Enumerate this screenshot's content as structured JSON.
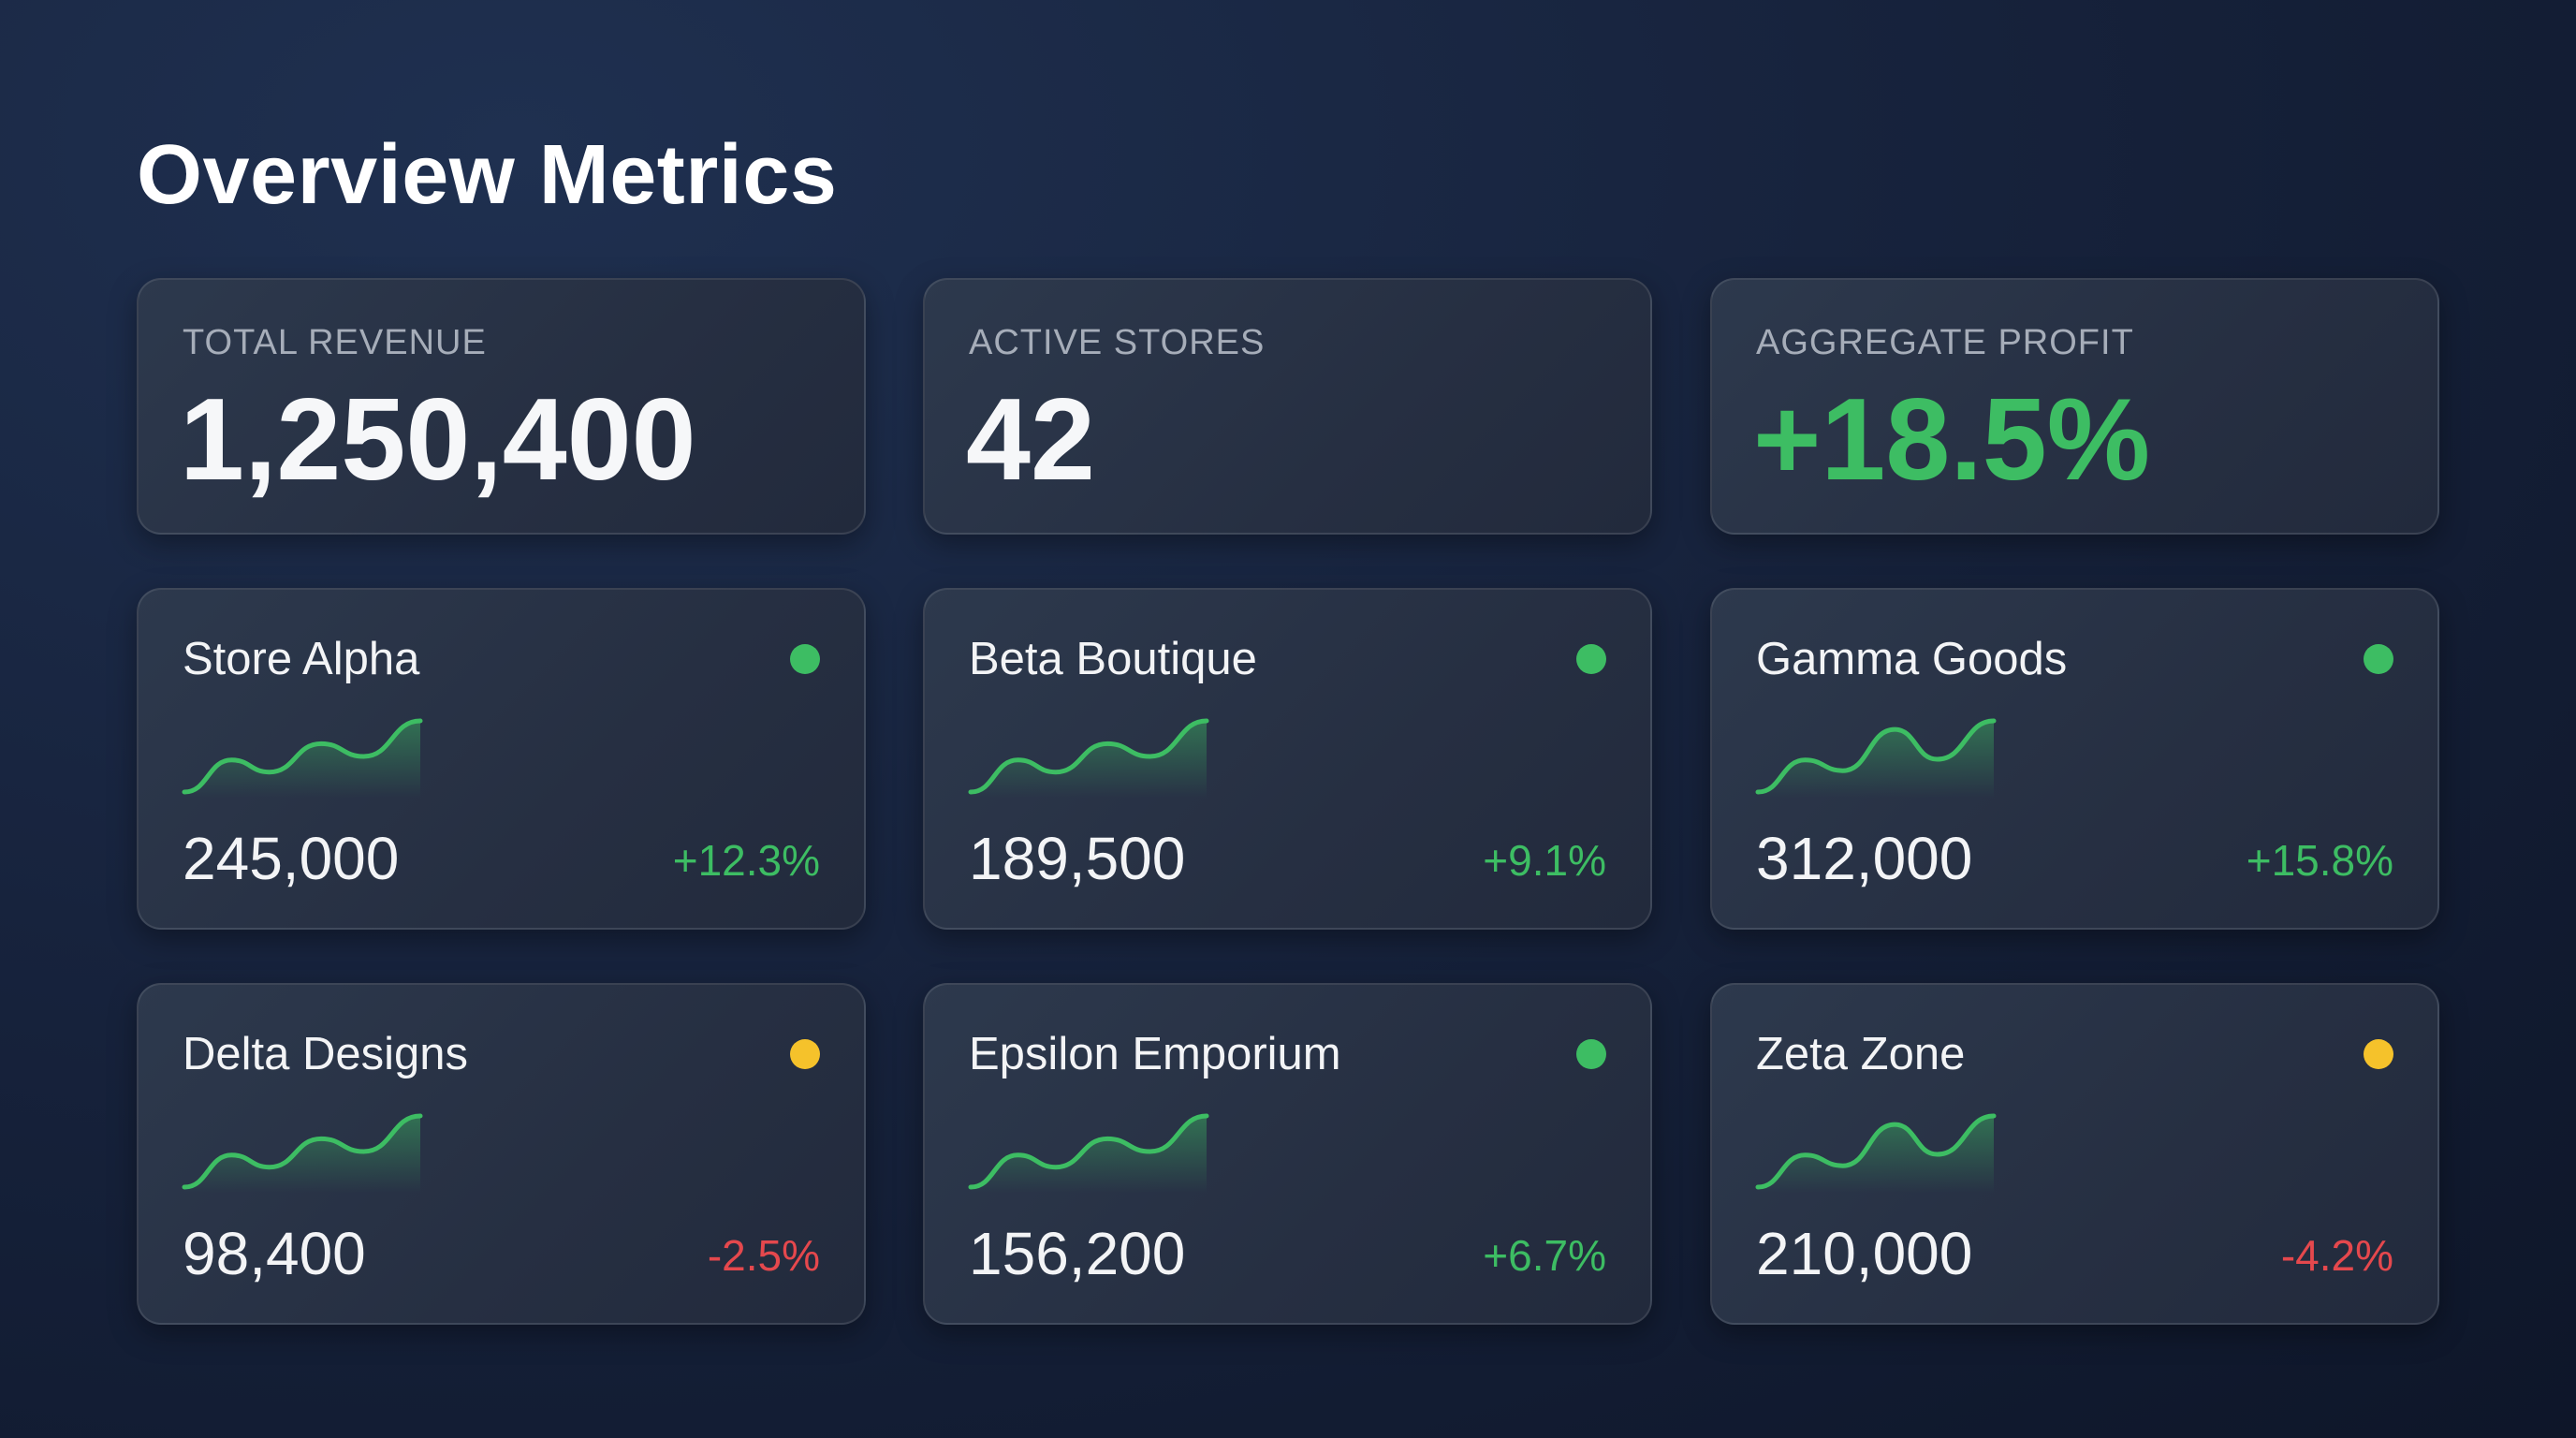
{
  "header": {
    "title": "Overview Metrics"
  },
  "colors": {
    "positive": "#3dbd63",
    "negative": "#e5484d",
    "status_green": "#3dbd63",
    "status_yellow": "#f5c22b"
  },
  "summary": [
    {
      "label": "TOTAL REVENUE",
      "value": "1,250,400",
      "tone": "neutral"
    },
    {
      "label": "ACTIVE STORES",
      "value": "42",
      "tone": "neutral"
    },
    {
      "label": "AGGREGATE PROFIT",
      "value": "+18.5%",
      "tone": "positive"
    }
  ],
  "stores": [
    {
      "name": "Store Alpha",
      "status": "green",
      "value": "245,000",
      "change": "+12.3%",
      "trend": [
        0,
        0.45,
        0.28,
        0.68,
        0.5,
        1
      ]
    },
    {
      "name": "Beta Boutique",
      "status": "green",
      "value": "189,500",
      "change": "+9.1%",
      "trend": [
        0,
        0.45,
        0.28,
        0.68,
        0.5,
        1
      ]
    },
    {
      "name": "Gamma Goods",
      "status": "green",
      "value": "312,000",
      "change": "+15.8%",
      "trend": [
        0,
        0.45,
        0.3,
        0.88,
        0.46,
        1
      ]
    },
    {
      "name": "Delta Designs",
      "status": "yellow",
      "value": "98,400",
      "change": "-2.5%",
      "trend": [
        0,
        0.45,
        0.28,
        0.68,
        0.5,
        1
      ]
    },
    {
      "name": "Epsilon Emporium",
      "status": "green",
      "value": "156,200",
      "change": "+6.7%",
      "trend": [
        0,
        0.45,
        0.28,
        0.68,
        0.5,
        1
      ]
    },
    {
      "name": "Zeta Zone",
      "status": "yellow",
      "value": "210,000",
      "change": "-4.2%",
      "trend": [
        0,
        0.45,
        0.3,
        0.88,
        0.46,
        1
      ]
    }
  ]
}
